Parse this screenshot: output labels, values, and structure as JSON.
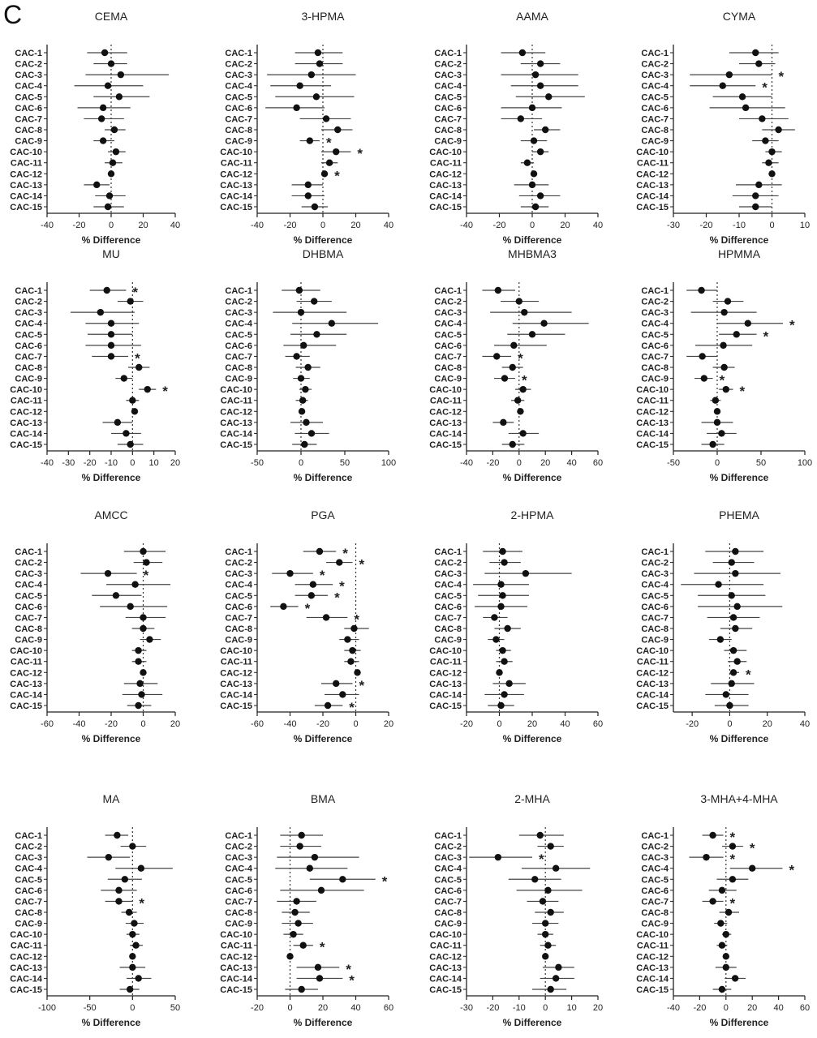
{
  "figure": {
    "panel_letter": "C"
  },
  "chart_data": [
    {
      "type": "forest",
      "title": "CEMA",
      "xlabel": "% Difference",
      "xlim": [
        -40,
        40
      ],
      "xticks": [
        -40,
        -20,
        0,
        20,
        40
      ],
      "categories": [
        "CAC-1",
        "CAC-2",
        "CAC-3",
        "CAC-4",
        "CAC-5",
        "CAC-6",
        "CAC-7",
        "CAC-8",
        "CAC-9",
        "CAC-10",
        "CAC-11",
        "CAC-12",
        "CAC-13",
        "CAC-14",
        "CAC-15"
      ],
      "values": [
        -4,
        0,
        6,
        -2,
        5,
        -5,
        -6,
        2,
        -5,
        3,
        1,
        0,
        -9,
        -1,
        -2
      ],
      "lower": [
        -15,
        -11,
        -16,
        -23,
        -11,
        -21,
        -17,
        -4,
        -11,
        -2,
        -4,
        -2,
        -17,
        -10,
        -11
      ],
      "upper": [
        10,
        10,
        36,
        20,
        24,
        12,
        8,
        9,
        2,
        9,
        7,
        2,
        -1,
        9,
        8
      ],
      "significant": []
    },
    {
      "type": "forest",
      "title": "3-HPMA",
      "xlabel": "% Difference",
      "xlim": [
        -40,
        40
      ],
      "xticks": [
        -40,
        -20,
        0,
        20,
        40
      ],
      "categories": [
        "CAC-1",
        "CAC-2",
        "CAC-3",
        "CAC-4",
        "CAC-5",
        "CAC-6",
        "CAC-7",
        "CAC-8",
        "CAC-9",
        "CAC-10",
        "CAC-11",
        "CAC-12",
        "CAC-13",
        "CAC-14",
        "CAC-15"
      ],
      "values": [
        -3,
        -2,
        -7,
        -14,
        -4,
        -16,
        2,
        9,
        -8,
        8,
        4,
        1,
        -9,
        -9,
        -5
      ],
      "lower": [
        -17,
        -17,
        -34,
        -32,
        -29,
        -35,
        -14,
        -1,
        -14,
        -1,
        -1,
        -1,
        -19,
        -19,
        -13
      ],
      "upper": [
        12,
        12,
        20,
        5,
        19,
        1,
        17,
        18,
        -2,
        17,
        9,
        3,
        0,
        1,
        3
      ],
      "significant": [
        9,
        10,
        12
      ]
    },
    {
      "type": "forest",
      "title": "AAMA",
      "xlabel": "% Difference",
      "xlim": [
        -40,
        40
      ],
      "xticks": [
        -40,
        -20,
        0,
        20,
        40
      ],
      "categories": [
        "CAC-1",
        "CAC-2",
        "CAC-3",
        "CAC-4",
        "CAC-5",
        "CAC-6",
        "CAC-7",
        "CAC-8",
        "CAC-9",
        "CAC-10",
        "CAC-11",
        "CAC-12",
        "CAC-13",
        "CAC-14",
        "CAC-15"
      ],
      "values": [
        -6,
        5,
        2,
        5,
        10,
        0,
        -7,
        8,
        1,
        5,
        -3,
        1,
        0,
        5,
        2
      ],
      "lower": [
        -19,
        -7,
        -19,
        -13,
        -10,
        -19,
        -19,
        1,
        -7,
        0,
        -7,
        -1,
        -11,
        -8,
        -7
      ],
      "upper": [
        8,
        17,
        28,
        28,
        32,
        18,
        6,
        17,
        9,
        10,
        1,
        3,
        10,
        17,
        10
      ],
      "significant": []
    },
    {
      "type": "forest",
      "title": "CYMA",
      "xlabel": "% Difference",
      "xlim": [
        -30,
        10
      ],
      "xticks": [
        -30,
        -20,
        -10,
        0,
        10
      ],
      "categories": [
        "CAC-1",
        "CAC-2",
        "CAC-3",
        "CAC-4",
        "CAC-5",
        "CAC-6",
        "CAC-7",
        "CAC-8",
        "CAC-9",
        "CAC-10",
        "CAC-11",
        "CAC-12",
        "CAC-13",
        "CAC-14",
        "CAC-15"
      ],
      "values": [
        -5,
        -4,
        -13,
        -15,
        -9,
        -8,
        -3,
        2,
        -2,
        0,
        -1,
        0,
        -4,
        -5,
        -5
      ],
      "lower": [
        -13,
        -10,
        -25,
        -25,
        -18,
        -19,
        -10,
        -3,
        -6,
        -2,
        -3,
        -1,
        -11,
        -12,
        -10
      ],
      "upper": [
        2,
        1,
        0,
        -5,
        0,
        4,
        5,
        7,
        2,
        3,
        2,
        1,
        3,
        2,
        0
      ],
      "significant": [
        3,
        4
      ]
    },
    {
      "type": "forest",
      "title": "MU",
      "xlabel": "%  Difference",
      "xlim": [
        -40,
        20
      ],
      "xticks": [
        -40,
        -30,
        -20,
        -10,
        0,
        10,
        20
      ],
      "categories": [
        "CAC-1",
        "CAC-2",
        "CAC-3",
        "CAC-4",
        "CAC-5",
        "CAC-6",
        "CAC-7",
        "CAC-8",
        "CAC-9",
        "CAC-10",
        "CAC-11",
        "CAC-12",
        "CAC-13",
        "CAC-14",
        "CAC-15"
      ],
      "values": [
        -12,
        -1,
        -15,
        -10,
        -10,
        -10,
        -10,
        3,
        -4,
        7,
        0,
        1,
        -7,
        -3,
        -1
      ],
      "lower": [
        -20,
        -7,
        -29,
        -22,
        -21,
        -22,
        -19,
        -2,
        -8,
        3,
        -3,
        0,
        -14,
        -10,
        -7
      ],
      "upper": [
        -3,
        5,
        1,
        3,
        0,
        4,
        -2,
        8,
        0,
        11,
        3,
        2,
        0,
        4,
        5
      ],
      "significant": [
        1,
        7,
        10
      ]
    },
    {
      "type": "forest",
      "title": "DHBMA",
      "xlabel": "% Difference",
      "xlim": [
        -50,
        100
      ],
      "xticks": [
        -50,
        0,
        50,
        100
      ],
      "categories": [
        "CAC-1",
        "CAC-2",
        "CAC-3",
        "CAC-4",
        "CAC-5",
        "CAC-6",
        "CAC-7",
        "CAC-8",
        "CAC-9",
        "CAC-10",
        "CAC-11",
        "CAC-12",
        "CAC-13",
        "CAC-14",
        "CAC-15"
      ],
      "values": [
        -2,
        15,
        0,
        35,
        18,
        3,
        -5,
        8,
        0,
        5,
        2,
        1,
        6,
        12,
        4
      ],
      "lower": [
        -22,
        -5,
        -32,
        -10,
        -12,
        -20,
        -18,
        -6,
        -9,
        -2,
        -6,
        -2,
        -12,
        -7,
        -10
      ],
      "upper": [
        22,
        35,
        52,
        88,
        52,
        40,
        10,
        22,
        10,
        12,
        8,
        3,
        25,
        32,
        18
      ],
      "significant": []
    },
    {
      "type": "forest",
      "title": "MHBMA3",
      "xlabel": "% Difference",
      "xlim": [
        -40,
        60
      ],
      "xticks": [
        -40,
        -20,
        0,
        20,
        40,
        60
      ],
      "categories": [
        "CAC-1",
        "CAC-2",
        "CAC-3",
        "CAC-4",
        "CAC-5",
        "CAC-6",
        "CAC-7",
        "CAC-8",
        "CAC-9",
        "CAC-10",
        "CAC-11",
        "CAC-12",
        "CAC-13",
        "CAC-14",
        "CAC-15"
      ],
      "values": [
        -16,
        0,
        4,
        19,
        10,
        -4,
        -17,
        -5,
        -11,
        3,
        -1,
        1,
        -12,
        3,
        -5
      ],
      "lower": [
        -28,
        -14,
        -22,
        -5,
        -9,
        -19,
        -28,
        -13,
        -19,
        -3,
        -6,
        -1,
        -20,
        -8,
        -13
      ],
      "upper": [
        -3,
        15,
        40,
        53,
        35,
        21,
        -6,
        3,
        -3,
        9,
        4,
        3,
        -4,
        15,
        4
      ],
      "significant": [
        7,
        9
      ]
    },
    {
      "type": "forest",
      "title": "HPMMA",
      "xlabel": "% Difference",
      "xlim": [
        -50,
        100
      ],
      "xticks": [
        -50,
        0,
        50,
        100
      ],
      "categories": [
        "CAC-1",
        "CAC-2",
        "CAC-3",
        "CAC-4",
        "CAC-5",
        "CAC-6",
        "CAC-7",
        "CAC-8",
        "CAC-9",
        "CAC-10",
        "CAC-11",
        "CAC-12",
        "CAC-13",
        "CAC-14",
        "CAC-15"
      ],
      "values": [
        -18,
        12,
        8,
        35,
        22,
        7,
        -17,
        8,
        -15,
        10,
        -2,
        0,
        0,
        5,
        -5
      ],
      "lower": [
        -35,
        -5,
        -30,
        0,
        2,
        -25,
        -35,
        -5,
        -26,
        2,
        -8,
        -3,
        -18,
        -12,
        -18
      ],
      "upper": [
        0,
        30,
        45,
        75,
        45,
        40,
        0,
        20,
        -5,
        18,
        4,
        3,
        18,
        22,
        8
      ],
      "significant": [
        4,
        5,
        9,
        10
      ]
    },
    {
      "type": "forest",
      "title": "AMCC",
      "xlabel": "% Difference",
      "xlim": [
        -60,
        20
      ],
      "xticks": [
        -60,
        -40,
        -20,
        0,
        20
      ],
      "categories": [
        "CAC-1",
        "CAC-2",
        "CAC-3",
        "CAC-4",
        "CAC-5",
        "CAC-6",
        "CAC-7",
        "CAC-8",
        "CAC-9",
        "CAC-10",
        "CAC-11",
        "CAC-12",
        "CAC-13",
        "CAC-14",
        "CAC-15"
      ],
      "values": [
        0,
        2,
        -22,
        -5,
        -17,
        -8,
        0,
        0,
        4,
        -3,
        -3,
        0,
        -2,
        -1,
        -3
      ],
      "lower": [
        -12,
        -6,
        -39,
        -23,
        -32,
        -27,
        -11,
        -7,
        -2,
        -7,
        -7,
        -2,
        -12,
        -13,
        -10
      ],
      "upper": [
        14,
        12,
        -4,
        17,
        -1,
        15,
        14,
        7,
        11,
        2,
        2,
        2,
        9,
        12,
        5
      ],
      "significant": [
        3
      ]
    },
    {
      "type": "forest",
      "title": "PGA",
      "xlabel": "% Difference",
      "xlim": [
        -60,
        20
      ],
      "xticks": [
        -60,
        -40,
        -20,
        0,
        20
      ],
      "categories": [
        "CAC-1",
        "CAC-2",
        "CAC-3",
        "CAC-4",
        "CAC-5",
        "CAC-6",
        "CAC-7",
        "CAC-8",
        "CAC-9",
        "CAC-10",
        "CAC-11",
        "CAC-12",
        "CAC-13",
        "CAC-14",
        "CAC-15"
      ],
      "values": [
        -22,
        -10,
        -40,
        -26,
        -27,
        -44,
        -18,
        -1,
        -5,
        -2,
        -3,
        1,
        -12,
        -8,
        -17
      ],
      "lower": [
        -32,
        -18,
        -51,
        -37,
        -37,
        -52,
        -30,
        -7,
        -10,
        -7,
        -7,
        -1,
        -21,
        -19,
        -25
      ],
      "upper": [
        -12,
        -2,
        -26,
        -14,
        -17,
        -35,
        -5,
        8,
        2,
        3,
        2,
        3,
        -2,
        2,
        -8
      ],
      "significant": [
        1,
        2,
        3,
        4,
        5,
        6,
        7,
        13,
        15
      ]
    },
    {
      "type": "forest",
      "title": "2-HPMA",
      "xlabel": "% Difference",
      "xlim": [
        -20,
        60
      ],
      "xticks": [
        -20,
        0,
        20,
        40,
        60
      ],
      "categories": [
        "CAC-1",
        "CAC-2",
        "CAC-3",
        "CAC-4",
        "CAC-5",
        "CAC-6",
        "CAC-7",
        "CAC-8",
        "CAC-9",
        "CAC-10",
        "CAC-11",
        "CAC-12",
        "CAC-13",
        "CAC-14",
        "CAC-15"
      ],
      "values": [
        2,
        3,
        16,
        1,
        2,
        1,
        -3,
        5,
        -2,
        2,
        3,
        0,
        6,
        3,
        1
      ],
      "lower": [
        -10,
        -6,
        -9,
        -16,
        -13,
        -15,
        -10,
        -3,
        -7,
        -2,
        -2,
        -1,
        -4,
        -9,
        -7
      ],
      "upper": [
        14,
        13,
        44,
        18,
        18,
        17,
        5,
        13,
        3,
        7,
        8,
        2,
        16,
        15,
        9
      ],
      "significant": []
    },
    {
      "type": "forest",
      "title": "PHEMA",
      "xlabel": "% Difference",
      "xlim": [
        -30,
        40
      ],
      "xticks": [
        -20,
        0,
        20,
        40
      ],
      "categories": [
        "CAC-1",
        "CAC-2",
        "CAC-3",
        "CAC-4",
        "CAC-5",
        "CAC-6",
        "CAC-7",
        "CAC-8",
        "CAC-9",
        "CAC-10",
        "CAC-11",
        "CAC-12",
        "CAC-13",
        "CAC-14",
        "CAC-15"
      ],
      "values": [
        3,
        1,
        3,
        -6,
        1,
        4,
        2,
        3,
        -5,
        2,
        4,
        2,
        1,
        -2,
        0
      ],
      "lower": [
        -13,
        -9,
        -19,
        -26,
        -17,
        -17,
        -12,
        -5,
        -11,
        -3,
        -1,
        0,
        -10,
        -13,
        -8
      ],
      "upper": [
        18,
        13,
        27,
        18,
        19,
        28,
        16,
        12,
        1,
        9,
        9,
        5,
        13,
        10,
        10
      ],
      "significant": [
        12
      ]
    },
    {
      "type": "forest",
      "title": "MA",
      "xlabel": "% Difference",
      "xlim": [
        -100,
        50
      ],
      "xticks": [
        -100,
        -50,
        0,
        50
      ],
      "categories": [
        "CAC-1",
        "CAC-2",
        "CAC-3",
        "CAC-4",
        "CAC-5",
        "CAC-6",
        "CAC-7",
        "CAC-8",
        "CAC-9",
        "CAC-10",
        "CAC-11",
        "CAC-12",
        "CAC-13",
        "CAC-14",
        "CAC-15"
      ],
      "values": [
        -18,
        0,
        -28,
        10,
        -9,
        -16,
        -16,
        -4,
        2,
        0,
        4,
        0,
        0,
        7,
        -3
      ],
      "lower": [
        -32,
        -14,
        -53,
        -20,
        -29,
        -37,
        -32,
        -13,
        -8,
        -7,
        -3,
        -3,
        -15,
        -7,
        -15
      ],
      "upper": [
        -5,
        16,
        -3,
        47,
        11,
        5,
        0,
        5,
        13,
        8,
        12,
        3,
        15,
        22,
        8
      ],
      "significant": [
        7
      ]
    },
    {
      "type": "forest",
      "title": "BMA",
      "xlabel": "% Difference",
      "xlim": [
        -20,
        60
      ],
      "xticks": [
        -20,
        0,
        20,
        40,
        60
      ],
      "categories": [
        "CAC-1",
        "CAC-2",
        "CAC-3",
        "CAC-4",
        "CAC-5",
        "CAC-6",
        "CAC-7",
        "CAC-8",
        "CAC-9",
        "CAC-10",
        "CAC-11",
        "CAC-12",
        "CAC-13",
        "CAC-14",
        "CAC-15"
      ],
      "values": [
        7,
        6,
        15,
        12,
        32,
        19,
        4,
        3,
        5,
        2,
        8,
        0,
        17,
        18,
        7
      ],
      "lower": [
        -6,
        -6,
        -8,
        -9,
        12,
        -6,
        -8,
        -5,
        -5,
        -4,
        2,
        -1,
        4,
        4,
        -3
      ],
      "upper": [
        20,
        19,
        42,
        35,
        52,
        45,
        16,
        12,
        14,
        8,
        14,
        1,
        30,
        32,
        17
      ],
      "significant": [
        5,
        11,
        13,
        14
      ]
    },
    {
      "type": "forest",
      "title": "2-MHA",
      "xlabel": "% Difference",
      "xlim": [
        -30,
        20
      ],
      "xticks": [
        -30,
        -20,
        -10,
        0,
        10,
        20
      ],
      "categories": [
        "CAC-1",
        "CAC-2",
        "CAC-3",
        "CAC-4",
        "CAC-5",
        "CAC-6",
        "CAC-7",
        "CAC-8",
        "CAC-9",
        "CAC-10",
        "CAC-11",
        "CAC-12",
        "CAC-13",
        "CAC-14",
        "CAC-15"
      ],
      "values": [
        -2,
        2,
        -18,
        4,
        -4,
        1,
        -1,
        2,
        0,
        0,
        1,
        0,
        5,
        4,
        2
      ],
      "lower": [
        -10,
        -3,
        -29,
        -9,
        -14,
        -11,
        -7,
        -4,
        -5,
        -3,
        -2,
        -1,
        -1,
        -2,
        -5
      ],
      "upper": [
        7,
        7,
        -5,
        17,
        6,
        14,
        5,
        7,
        5,
        3,
        4,
        1,
        11,
        11,
        8
      ],
      "significant": [
        3
      ]
    },
    {
      "type": "forest",
      "title": "3-MHA+4-MHA",
      "xlabel": "% Difference",
      "xlim": [
        -40,
        60
      ],
      "xticks": [
        -40,
        -20,
        0,
        20,
        40,
        60
      ],
      "categories": [
        "CAC-1",
        "CAC-2",
        "CAC-3",
        "CAC-4",
        "CAC-5",
        "CAC-6",
        "CAC-7",
        "CAC-8",
        "CAC-9",
        "CAC-10",
        "CAC-11",
        "CAC-12",
        "CAC-13",
        "CAC-14",
        "CAC-15"
      ],
      "values": [
        -10,
        5,
        -15,
        20,
        5,
        -3,
        -10,
        2,
        -4,
        0,
        -3,
        0,
        0,
        7,
        -3
      ],
      "lower": [
        -18,
        -3,
        -28,
        3,
        -7,
        -13,
        -18,
        -5,
        -9,
        -3,
        -7,
        -2,
        -8,
        -1,
        -10
      ],
      "upper": [
        -2,
        13,
        -2,
        43,
        17,
        8,
        -2,
        10,
        1,
        4,
        1,
        2,
        8,
        15,
        4
      ],
      "significant": [
        1,
        2,
        3,
        4,
        7
      ]
    }
  ]
}
